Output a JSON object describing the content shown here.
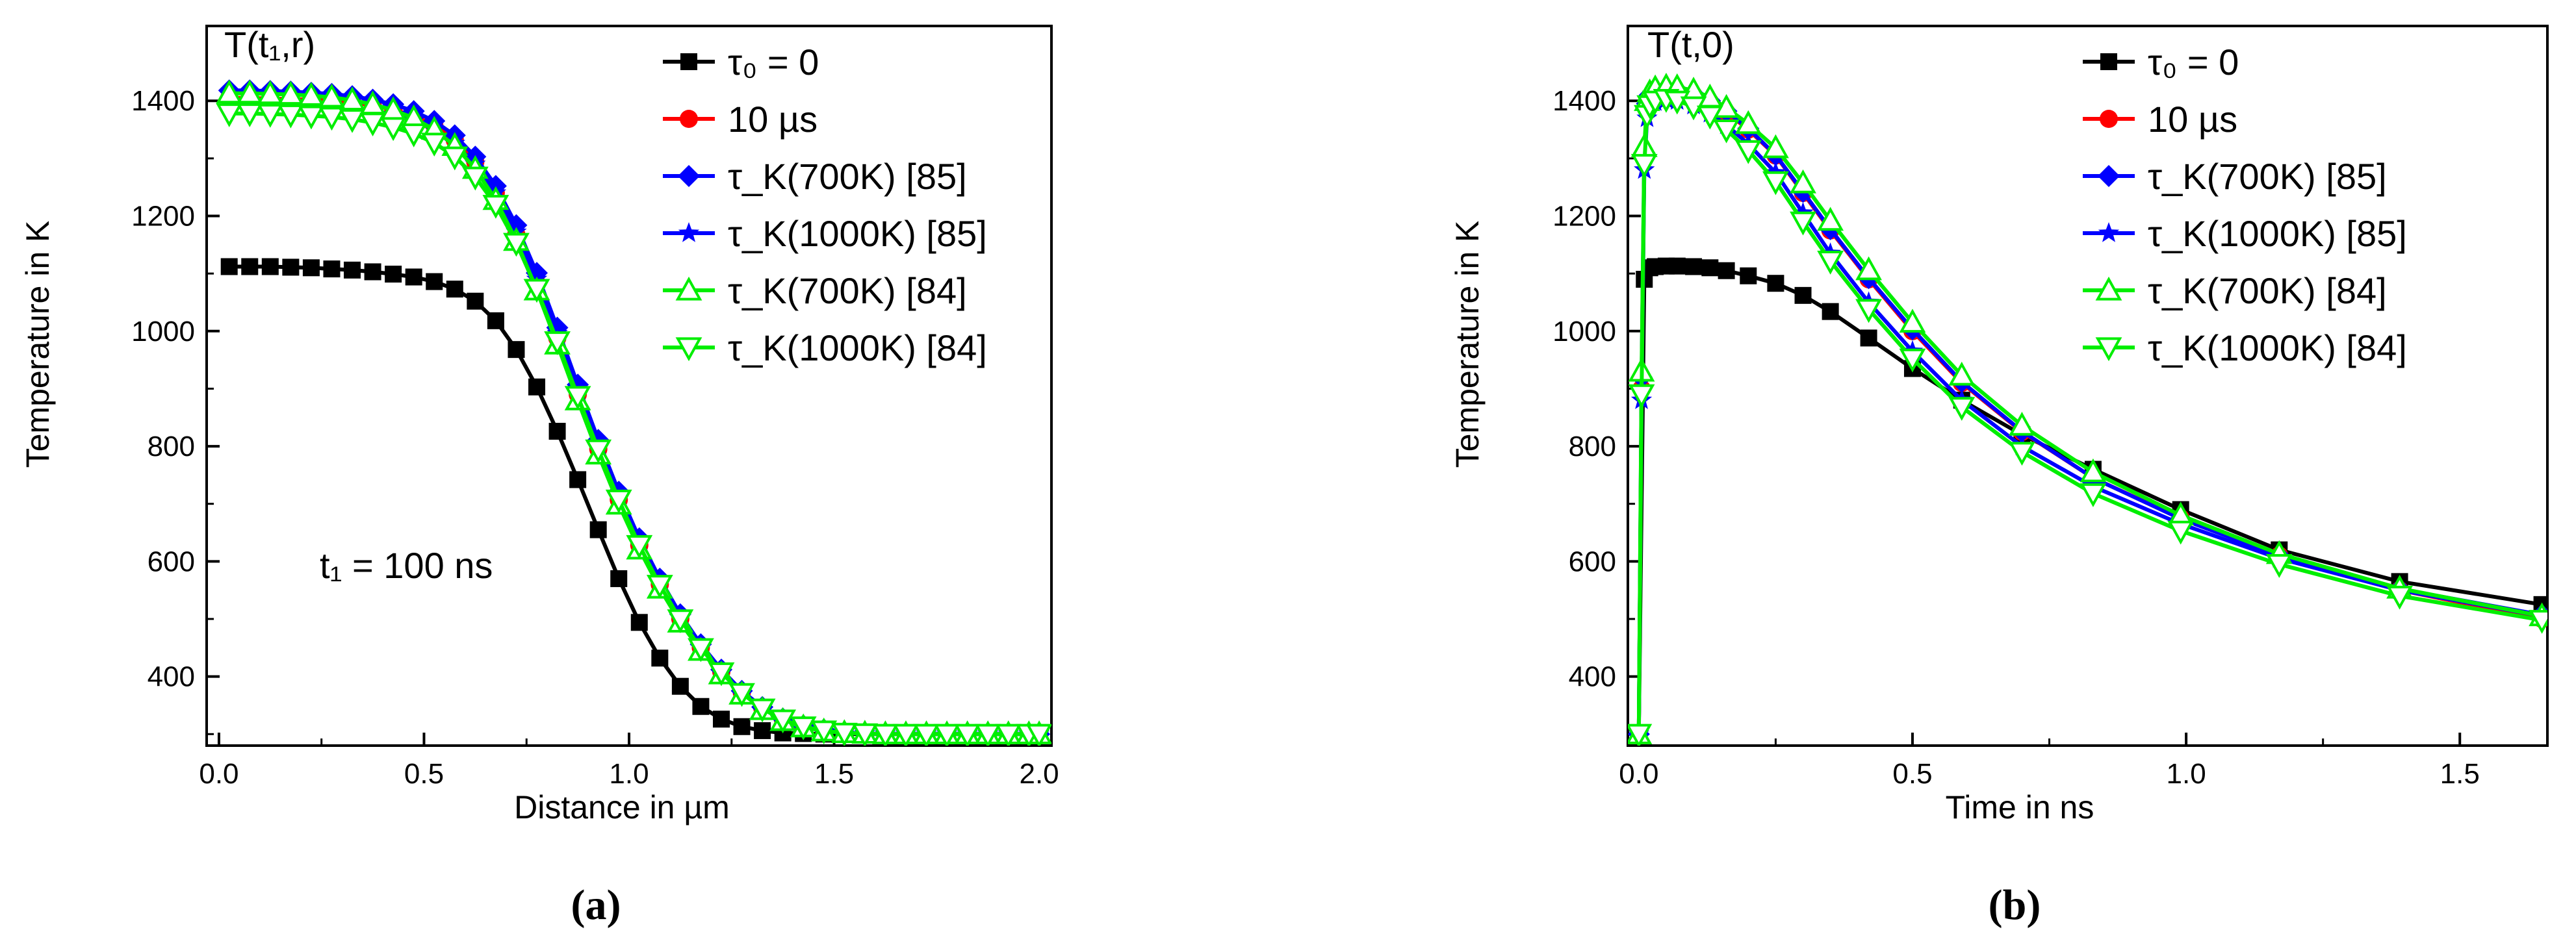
{
  "chart_data": [
    {
      "type": "line",
      "panel": "a",
      "caption": "(a)",
      "corner_label": "T(t₁,r)",
      "annotation": "t₁ = 100 ns",
      "xlabel": "Distance in µm",
      "ylabel": "Temperature in K",
      "xlim": [
        -0.03,
        2.03
      ],
      "ylim": [
        280,
        1530
      ],
      "xticks": [
        "0.0",
        "0.5",
        "1.0",
        "1.5",
        "2.0"
      ],
      "yticks": [
        "400",
        "600",
        "800",
        "1000",
        "1200",
        "1400"
      ],
      "grid": false,
      "legend_position": "top-right",
      "series": [
        {
          "name": "τ₀ = 0",
          "color": "#000000",
          "marker": "square",
          "x": [
            0.025,
            0.075,
            0.125,
            0.175,
            0.225,
            0.275,
            0.325,
            0.375,
            0.425,
            0.475,
            0.525,
            0.575,
            0.625,
            0.675,
            0.725,
            0.775,
            0.825,
            0.875,
            0.925,
            0.975,
            1.025,
            1.075,
            1.125,
            1.175,
            1.225,
            1.275,
            1.325,
            1.375,
            1.425,
            1.475,
            1.525,
            1.575,
            1.625,
            1.675,
            1.725,
            1.775,
            1.825,
            1.875,
            1.925,
            1.975,
            2.0
          ],
          "y": [
            1112,
            1112,
            1112,
            1111,
            1110,
            1108,
            1106,
            1103,
            1099,
            1094,
            1086,
            1073,
            1052,
            1018,
            968,
            903,
            826,
            742,
            655,
            570,
            494,
            432,
            383,
            348,
            326,
            313,
            306,
            302,
            301,
            300,
            300,
            300,
            300,
            300,
            300,
            300,
            300,
            300,
            300,
            300,
            300
          ]
        },
        {
          "name": "10 µs",
          "color": "#ff0000",
          "marker": "circle",
          "x": [
            0.025,
            0.075,
            0.125,
            0.175,
            0.225,
            0.275,
            0.325,
            0.375,
            0.425,
            0.475,
            0.525,
            0.575,
            0.625,
            0.675,
            0.725,
            0.775,
            0.825,
            0.875,
            0.925,
            0.975,
            1.025,
            1.075,
            1.125,
            1.175,
            1.225,
            1.275,
            1.325,
            1.375,
            1.425,
            1.475,
            1.525,
            1.575,
            1.625,
            1.675,
            1.725,
            1.775,
            1.825,
            1.875,
            1.925,
            1.975,
            2.0
          ],
          "y": [
            1405,
            1405,
            1404,
            1403,
            1402,
            1400,
            1397,
            1392,
            1385,
            1374,
            1358,
            1332,
            1294,
            1240,
            1168,
            1083,
            988,
            890,
            795,
            707,
            628,
            560,
            500,
            450,
            408,
            372,
            345,
            326,
            314,
            307,
            303,
            301,
            300,
            300,
            300,
            300,
            300,
            300,
            300,
            300,
            300
          ]
        },
        {
          "name": "τ_K(700K) [85]",
          "color": "#0000ff",
          "marker": "diamond",
          "x": [
            0.025,
            0.075,
            0.125,
            0.175,
            0.225,
            0.275,
            0.325,
            0.375,
            0.425,
            0.475,
            0.525,
            0.575,
            0.625,
            0.675,
            0.725,
            0.775,
            0.825,
            0.875,
            0.925,
            0.975,
            1.025,
            1.075,
            1.125,
            1.175,
            1.225,
            1.275,
            1.325,
            1.375,
            1.425,
            1.475,
            1.525,
            1.575,
            1.625,
            1.675,
            1.725,
            1.775,
            1.825,
            1.875,
            1.925,
            1.975,
            2.0
          ],
          "y": [
            1418,
            1418,
            1417,
            1416,
            1414,
            1412,
            1408,
            1402,
            1394,
            1382,
            1365,
            1340,
            1303,
            1252,
            1184,
            1101,
            1006,
            907,
            811,
            721,
            640,
            570,
            508,
            456,
            412,
            375,
            347,
            327,
            315,
            308,
            303,
            301,
            300,
            300,
            300,
            300,
            300,
            300,
            300,
            300,
            300
          ]
        },
        {
          "name": "τ_K(1000K) [85]",
          "color": "#0000ff",
          "marker": "star",
          "x": [
            0.025,
            0.075,
            0.125,
            0.175,
            0.225,
            0.275,
            0.325,
            0.375,
            0.425,
            0.475,
            0.525,
            0.575,
            0.625,
            0.675,
            0.725,
            0.775,
            0.825,
            0.875,
            0.925,
            0.975,
            1.025,
            1.075,
            1.125,
            1.175,
            1.225,
            1.275,
            1.325,
            1.375,
            1.425,
            1.475,
            1.525,
            1.575,
            1.625,
            1.675,
            1.725,
            1.775,
            1.825,
            1.875,
            1.925,
            1.975,
            2.0
          ],
          "y": [
            1396,
            1396,
            1395,
            1394,
            1393,
            1391,
            1388,
            1383,
            1376,
            1365,
            1350,
            1326,
            1290,
            1240,
            1172,
            1090,
            996,
            898,
            803,
            714,
            634,
            565,
            504,
            453,
            410,
            374,
            346,
            327,
            315,
            308,
            303,
            301,
            300,
            300,
            300,
            300,
            300,
            300,
            300,
            300,
            300
          ]
        },
        {
          "name": "τ_K(700K) [84]",
          "color": "#00ee00",
          "marker": "triangle-up",
          "x": [
            0.025,
            0.075,
            0.125,
            0.175,
            0.225,
            0.275,
            0.325,
            0.375,
            0.425,
            0.475,
            0.525,
            0.575,
            0.625,
            0.675,
            0.725,
            0.775,
            0.825,
            0.875,
            0.925,
            0.975,
            1.025,
            1.075,
            1.125,
            1.175,
            1.225,
            1.275,
            1.325,
            1.375,
            1.425,
            1.475,
            1.525,
            1.575,
            1.625,
            1.675,
            1.725,
            1.775,
            1.825,
            1.875,
            1.925,
            1.975,
            2.0
          ],
          "y": [
            1413,
            1413,
            1412,
            1411,
            1409,
            1406,
            1401,
            1394,
            1384,
            1370,
            1350,
            1322,
            1282,
            1228,
            1157,
            1071,
            977,
            880,
            786,
            699,
            621,
            553,
            494,
            445,
            404,
            369,
            342,
            323,
            312,
            305,
            302,
            301,
            300,
            300,
            300,
            300,
            300,
            300,
            300,
            300,
            300
          ]
        },
        {
          "name": "τ_K(1000K) [84]",
          "color": "#00ee00",
          "marker": "triangle-down",
          "x": [
            0.025,
            0.075,
            0.125,
            0.175,
            0.225,
            0.275,
            0.325,
            0.375,
            0.425,
            0.475,
            0.525,
            0.575,
            0.625,
            0.675,
            0.725,
            0.775,
            0.825,
            0.875,
            0.925,
            0.975,
            1.025,
            1.075,
            1.125,
            1.175,
            1.225,
            1.275,
            1.325,
            1.375,
            1.425,
            1.475,
            1.525,
            1.575,
            1.625,
            1.675,
            1.725,
            1.775,
            1.825,
            1.875,
            1.925,
            1.975,
            2.0
          ],
          "y": [
            1378,
            1378,
            1377,
            1376,
            1374,
            1372,
            1368,
            1362,
            1354,
            1343,
            1327,
            1303,
            1268,
            1219,
            1153,
            1073,
            982,
            887,
            794,
            707,
            628,
            559,
            499,
            449,
            407,
            371,
            344,
            325,
            313,
            306,
            302,
            301,
            300,
            300,
            300,
            300,
            300,
            300,
            300,
            300,
            300
          ]
        }
      ]
    },
    {
      "type": "line",
      "panel": "b",
      "caption": "(b)",
      "corner_label": "T(t,0)",
      "xlabel": "Time in ns",
      "ylabel": "Temperature in K",
      "xlim": [
        -0.02,
        1.66
      ],
      "ylim": [
        280,
        1530
      ],
      "xticks": [
        "0.0",
        "0.5",
        "1.0",
        "1.5"
      ],
      "yticks": [
        "400",
        "600",
        "800",
        "1000",
        "1200",
        "1400"
      ],
      "grid": false,
      "legend_position": "top-right",
      "series": [
        {
          "name": "τ₀ = 0",
          "color": "#000000",
          "marker": "square",
          "x": [
            0.0,
            0.01,
            0.02,
            0.03,
            0.05,
            0.07,
            0.1,
            0.13,
            0.16,
            0.2,
            0.25,
            0.3,
            0.35,
            0.42,
            0.5,
            0.59,
            0.7,
            0.83,
            0.99,
            1.17,
            1.39,
            1.65
          ],
          "y": [
            300,
            1090,
            1110,
            1112,
            1113,
            1113,
            1112,
            1110,
            1105,
            1096,
            1083,
            1062,
            1034,
            988,
            935,
            880,
            820,
            760,
            690,
            620,
            565,
            525
          ]
        },
        {
          "name": "10 µs",
          "color": "#ff0000",
          "marker": "circle",
          "x": [
            0.0,
            0.005,
            0.01,
            0.015,
            0.02,
            0.03,
            0.05,
            0.07,
            0.1,
            0.13,
            0.16,
            0.2,
            0.25,
            0.3,
            0.35,
            0.42,
            0.5,
            0.59,
            0.7,
            0.83,
            0.99,
            1.17,
            1.39,
            1.65
          ],
          "y": [
            300,
            900,
            1300,
            1390,
            1405,
            1413,
            1416,
            1415,
            1410,
            1398,
            1380,
            1350,
            1305,
            1240,
            1175,
            1090,
            1000,
            910,
            825,
            745,
            675,
            610,
            550,
            500
          ]
        },
        {
          "name": "τ_K(700K) [85]",
          "color": "#0000ff",
          "marker": "diamond",
          "x": [
            0.0,
            0.005,
            0.01,
            0.015,
            0.02,
            0.03,
            0.05,
            0.07,
            0.1,
            0.13,
            0.16,
            0.2,
            0.25,
            0.3,
            0.35,
            0.42,
            0.5,
            0.59,
            0.7,
            0.83,
            0.99,
            1.17,
            1.39,
            1.65
          ],
          "y": [
            300,
            920,
            1310,
            1395,
            1410,
            1418,
            1420,
            1419,
            1412,
            1400,
            1382,
            1352,
            1306,
            1242,
            1177,
            1092,
            1003,
            912,
            826,
            745,
            674,
            610,
            552,
            507
          ]
        },
        {
          "name": "τ_K(1000K) [85]",
          "color": "#0000ff",
          "marker": "star",
          "x": [
            0.0,
            0.005,
            0.01,
            0.015,
            0.02,
            0.03,
            0.05,
            0.07,
            0.1,
            0.13,
            0.16,
            0.2,
            0.25,
            0.3,
            0.35,
            0.42,
            0.5,
            0.59,
            0.7,
            0.83,
            0.99,
            1.17,
            1.39,
            1.65
          ],
          "y": [
            300,
            880,
            1280,
            1370,
            1388,
            1398,
            1402,
            1400,
            1392,
            1378,
            1358,
            1325,
            1275,
            1205,
            1135,
            1050,
            965,
            880,
            800,
            730,
            665,
            605,
            550,
            505
          ]
        },
        {
          "name": "τ_K(700K) [84]",
          "color": "#00ee00",
          "marker": "triangle-up",
          "x": [
            0.0,
            0.005,
            0.01,
            0.015,
            0.02,
            0.03,
            0.05,
            0.07,
            0.1,
            0.13,
            0.16,
            0.2,
            0.25,
            0.3,
            0.35,
            0.42,
            0.5,
            0.59,
            0.7,
            0.83,
            0.99,
            1.17,
            1.39,
            1.65
          ],
          "y": [
            300,
            930,
            1320,
            1400,
            1415,
            1422,
            1425,
            1424,
            1418,
            1406,
            1388,
            1360,
            1318,
            1257,
            1192,
            1106,
            1015,
            923,
            836,
            755,
            680,
            613,
            553,
            505
          ]
        },
        {
          "name": "τ_K(1000K) [84]",
          "color": "#00ee00",
          "marker": "triangle-down",
          "x": [
            0.0,
            0.005,
            0.01,
            0.015,
            0.02,
            0.03,
            0.05,
            0.07,
            0.1,
            0.13,
            0.16,
            0.2,
            0.25,
            0.3,
            0.35,
            0.42,
            0.5,
            0.59,
            0.7,
            0.83,
            0.99,
            1.17,
            1.39,
            1.65
          ],
          "y": [
            300,
            890,
            1290,
            1375,
            1392,
            1400,
            1403,
            1400,
            1390,
            1374,
            1350,
            1314,
            1260,
            1190,
            1122,
            1038,
            952,
            868,
            790,
            718,
            653,
            595,
            540,
            498
          ]
        }
      ]
    }
  ]
}
